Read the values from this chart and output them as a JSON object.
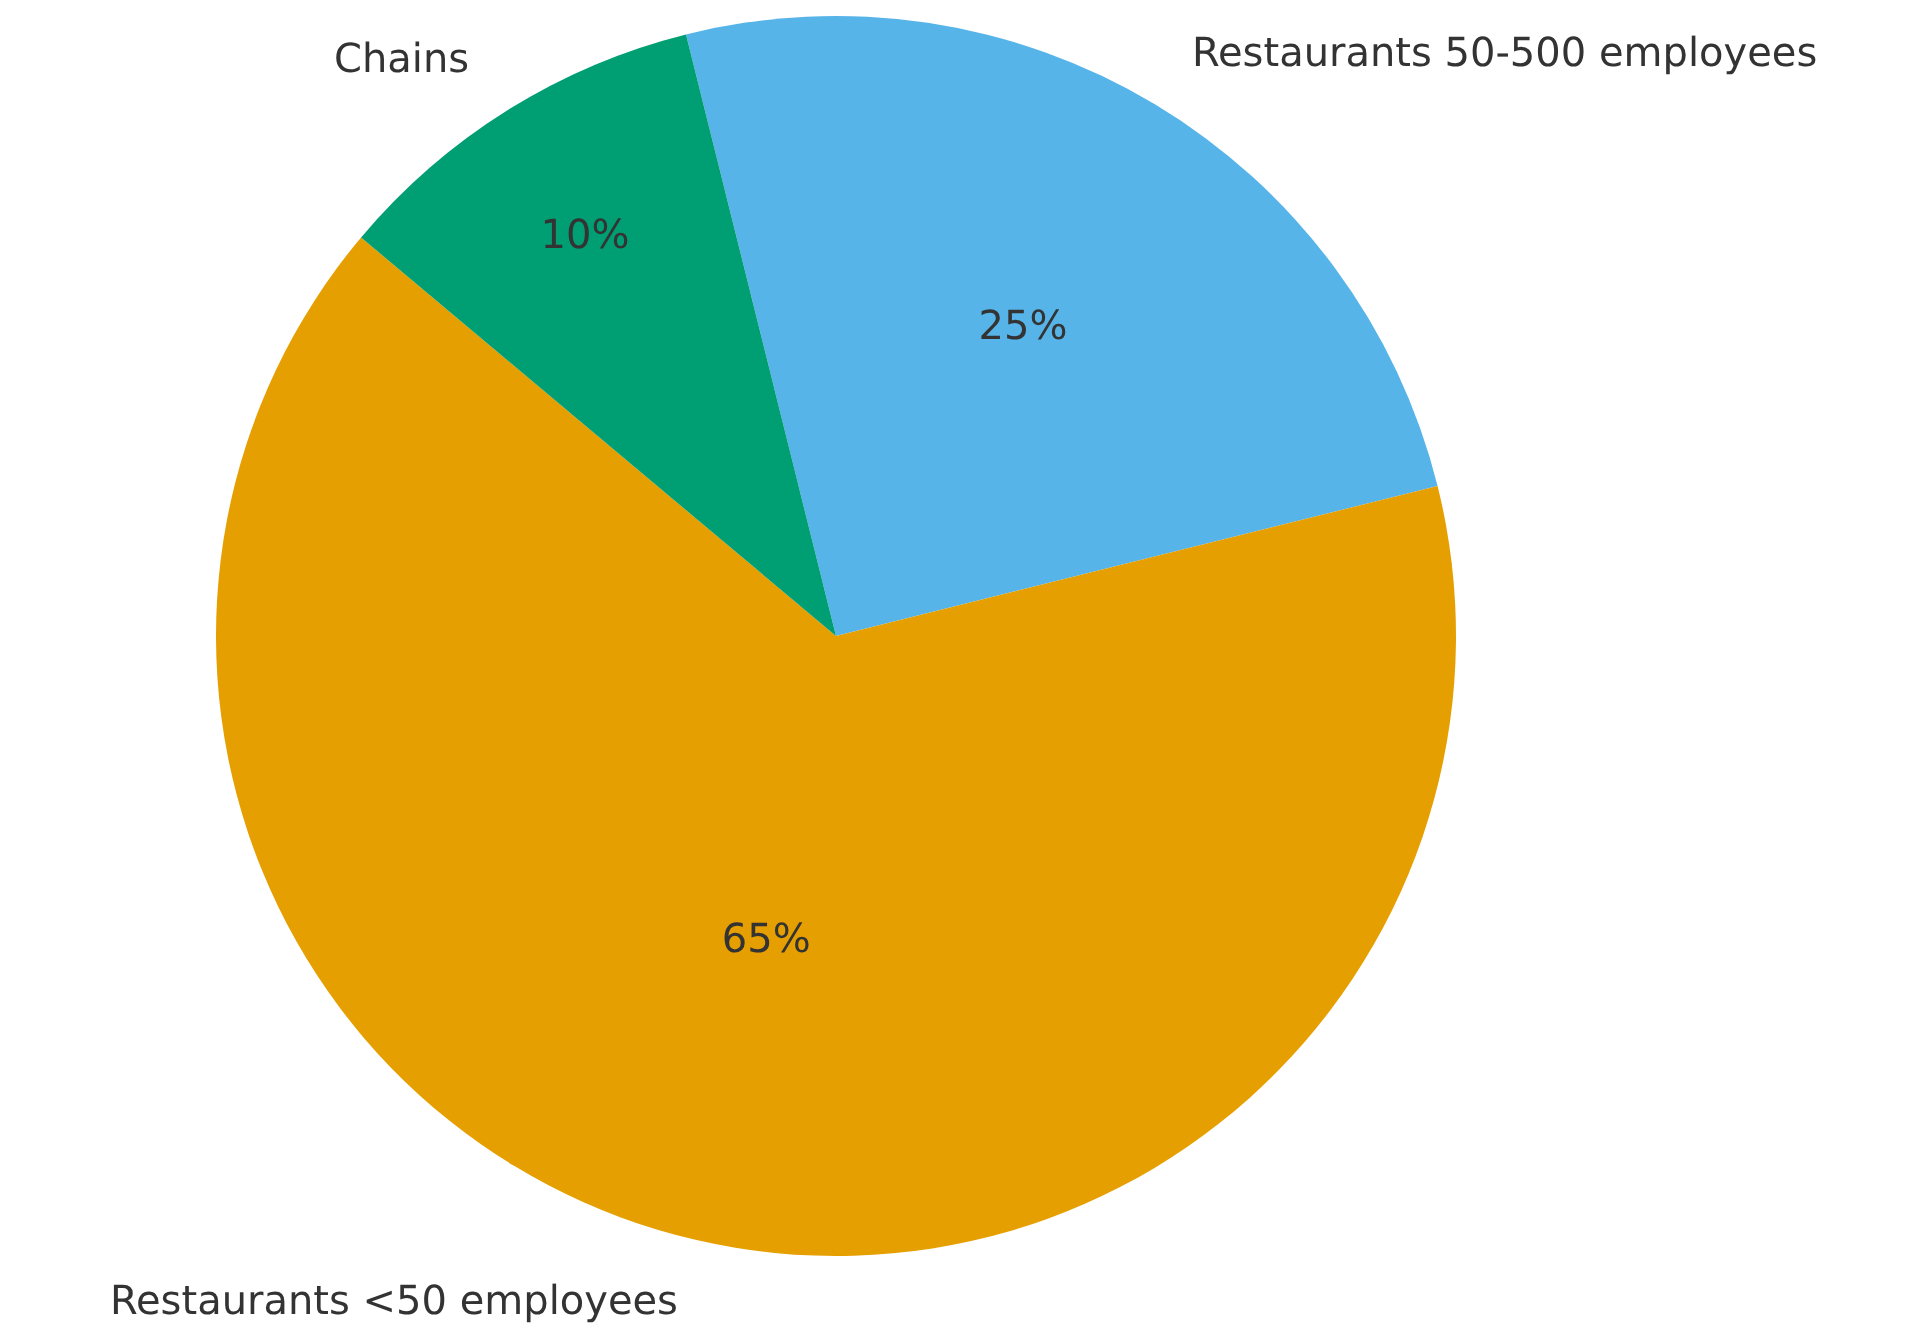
{
  "chart_data": {
    "type": "pie",
    "categories": [
      "Restaurants 50-500 employees",
      "Restaurants <50 employees",
      "Chains"
    ],
    "values": [
      25,
      65,
      10
    ],
    "colors": [
      "#56b4e9",
      "#e69f00",
      "#009e73"
    ],
    "value_labels": [
      "25%",
      "65%",
      "10%"
    ]
  }
}
